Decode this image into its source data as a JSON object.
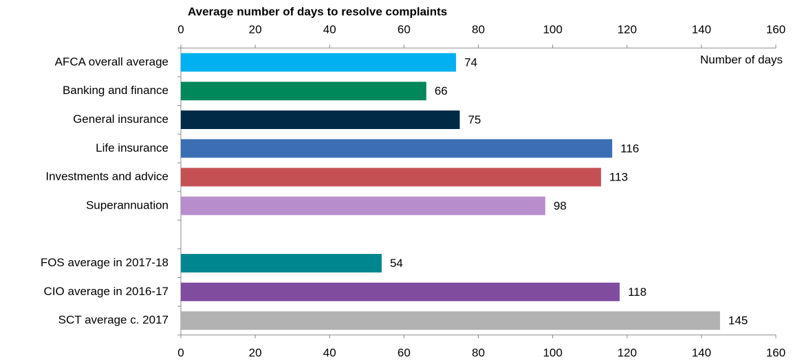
{
  "chart_data": {
    "type": "barh",
    "title": "Average number of days to resolve complaints",
    "annotation": "Number of days",
    "categories": [
      "AFCA overall average",
      "Banking and finance",
      "General insurance",
      "Life insurance",
      "Investments and advice",
      "Superannuation",
      null,
      "FOS average in 2017-18",
      "CIO average in 2016-17",
      "SCT average c. 2017"
    ],
    "values": [
      74,
      66,
      75,
      116,
      113,
      98,
      null,
      54,
      118,
      145
    ],
    "colors": [
      "#00b0f0",
      "#00875a",
      "#002a45",
      "#3b6eb5",
      "#c55054",
      "#b88dcc",
      null,
      "#00868f",
      "#804c9e",
      "#b2b2b2"
    ],
    "xlim": [
      0,
      160
    ],
    "xticks": [
      0,
      20,
      40,
      60,
      80,
      100,
      120,
      140,
      160
    ]
  }
}
